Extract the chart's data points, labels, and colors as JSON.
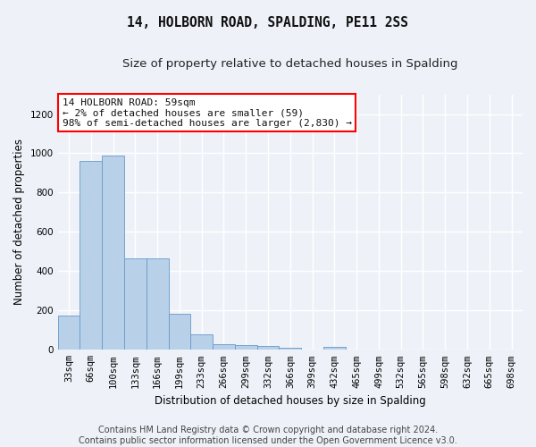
{
  "title": "14, HOLBORN ROAD, SPALDING, PE11 2SS",
  "subtitle": "Size of property relative to detached houses in Spalding",
  "xlabel": "Distribution of detached houses by size in Spalding",
  "ylabel": "Number of detached properties",
  "categories": [
    "33sqm",
    "66sqm",
    "100sqm",
    "133sqm",
    "166sqm",
    "199sqm",
    "233sqm",
    "266sqm",
    "299sqm",
    "332sqm",
    "366sqm",
    "399sqm",
    "432sqm",
    "465sqm",
    "499sqm",
    "532sqm",
    "565sqm",
    "598sqm",
    "632sqm",
    "665sqm",
    "698sqm"
  ],
  "values": [
    175,
    960,
    990,
    465,
    465,
    185,
    80,
    30,
    25,
    20,
    12,
    0,
    15,
    0,
    0,
    0,
    0,
    0,
    0,
    0,
    0
  ],
  "bar_color": "#b8d0e8",
  "bar_edge_color": "#6699cc",
  "ylim": [
    0,
    1300
  ],
  "yticks": [
    0,
    200,
    400,
    600,
    800,
    1000,
    1200
  ],
  "annotation_text_line1": "14 HOLBORN ROAD: 59sqm",
  "annotation_text_line2": "← 2% of detached houses are smaller (59)",
  "annotation_text_line3": "98% of semi-detached houses are larger (2,830) →",
  "footer_line1": "Contains HM Land Registry data © Crown copyright and database right 2024.",
  "footer_line2": "Contains public sector information licensed under the Open Government Licence v3.0.",
  "bg_color": "#eef2f8",
  "plot_bg_color": "#eef2f8",
  "grid_color": "#ffffff",
  "title_fontsize": 10.5,
  "subtitle_fontsize": 9.5,
  "axis_label_fontsize": 8.5,
  "tick_fontsize": 7.5,
  "annotation_fontsize": 8,
  "footer_fontsize": 7
}
